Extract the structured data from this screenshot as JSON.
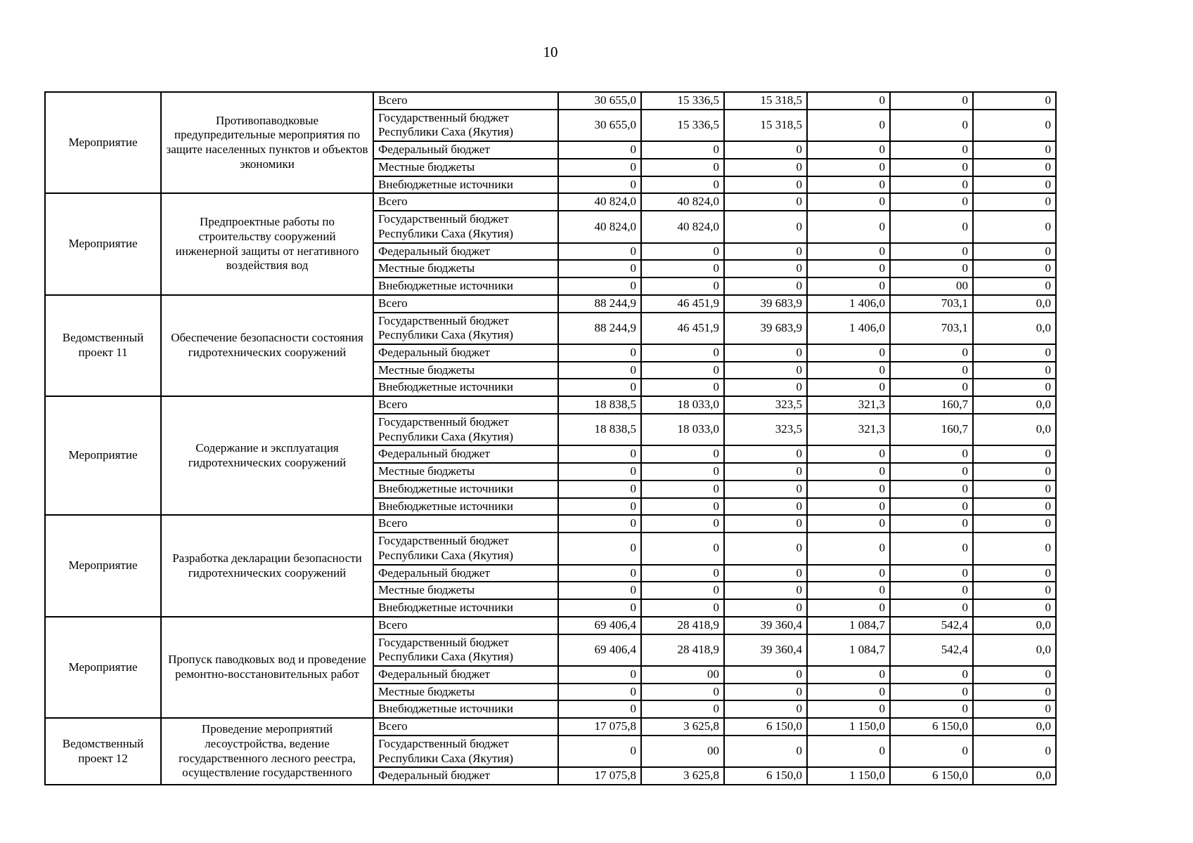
{
  "page": {
    "number": "10"
  },
  "table": {
    "groups": [
      {
        "label": "Мероприятие",
        "description": "Противопаводковые предупредительные мероприятия по защите населенных пунктов и объектов экономики",
        "rows": [
          {
            "source": "Всего",
            "values": [
              "30 655,0",
              "15 336,5",
              "15 318,5",
              "0",
              "0",
              "0"
            ]
          },
          {
            "source": "Государственный бюджет Республики Саха (Якутия)",
            "values": [
              "30 655,0",
              "15 336,5",
              "15 318,5",
              "0",
              "0",
              "0"
            ]
          },
          {
            "source": "Федеральный бюджет",
            "values": [
              "0",
              "0",
              "0",
              "0",
              "0",
              "0"
            ]
          },
          {
            "source": "Местные бюджеты",
            "values": [
              "0",
              "0",
              "0",
              "0",
              "0",
              "0"
            ]
          },
          {
            "source": "Внебюджетные источники",
            "values": [
              "0",
              "0",
              "0",
              "0",
              "0",
              "0"
            ]
          }
        ]
      },
      {
        "label": "Мероприятие",
        "description": "Предпроектные работы по строительству сооружений инженерной защиты от негативного воздействия вод",
        "rows": [
          {
            "source": "Всего",
            "values": [
              "40 824,0",
              "40 824,0",
              "0",
              "0",
              "0",
              "0"
            ]
          },
          {
            "source": "Государственный бюджет Республики Саха (Якутия)",
            "values": [
              "40 824,0",
              "40 824,0",
              "0",
              "0",
              "0",
              "0"
            ]
          },
          {
            "source": "Федеральный бюджет",
            "values": [
              "0",
              "0",
              "0",
              "0",
              "0",
              "0"
            ]
          },
          {
            "source": "Местные бюджеты",
            "values": [
              "0",
              "0",
              "0",
              "0",
              "0",
              "0"
            ]
          },
          {
            "source": "Внебюджетные источники",
            "values": [
              "0",
              "0",
              "0",
              "0",
              "00",
              "0"
            ]
          }
        ]
      },
      {
        "label": "Ведомственный проект 11",
        "description": "Обеспечение безопасности состояния гидротехнических сооружений",
        "rows": [
          {
            "source": "Всего",
            "values": [
              "88 244,9",
              "46 451,9",
              "39 683,9",
              "1 406,0",
              "703,1",
              "0,0"
            ]
          },
          {
            "source": "Государственный бюджет Республики Саха (Якутия)",
            "values": [
              "88 244,9",
              "46 451,9",
              "39 683,9",
              "1 406,0",
              "703,1",
              "0,0"
            ]
          },
          {
            "source": "Федеральный бюджет",
            "values": [
              "0",
              "0",
              "0",
              "0",
              "0",
              "0"
            ]
          },
          {
            "source": "Местные бюджеты",
            "values": [
              "0",
              "0",
              "0",
              "0",
              "0",
              "0"
            ]
          },
          {
            "source": "Внебюджетные источники",
            "values": [
              "0",
              "0",
              "0",
              "0",
              "0",
              "0"
            ]
          }
        ]
      },
      {
        "label": "Мероприятие",
        "description": "Содержание и эксплуатация гидротехнических сооружений",
        "rows": [
          {
            "source": "Всего",
            "values": [
              "18 838,5",
              "18 033,0",
              "323,5",
              "321,3",
              "160,7",
              "0,0"
            ]
          },
          {
            "source": "Государственный бюджет Республики Саха (Якутия)",
            "values": [
              "18 838,5",
              "18 033,0",
              "323,5",
              "321,3",
              "160,7",
              "0,0"
            ]
          },
          {
            "source": "Федеральный бюджет",
            "values": [
              "0",
              "0",
              "0",
              "0",
              "0",
              "0"
            ]
          },
          {
            "source": "Местные бюджеты",
            "values": [
              "0",
              "0",
              "0",
              "0",
              "0",
              "0"
            ]
          },
          {
            "source": "Внебюджетные источники",
            "values": [
              "0",
              "0",
              "0",
              "0",
              "0",
              "0"
            ]
          },
          {
            "source": "Внебюджетные источники",
            "values": [
              "0",
              "0",
              "0",
              "0",
              "0",
              "0"
            ]
          }
        ]
      },
      {
        "label": "Мероприятие",
        "description": "Разработка декларации безопасности гидротехнических сооружений",
        "rows": [
          {
            "source": "Всего",
            "values": [
              "0",
              "0",
              "0",
              "0",
              "0",
              "0"
            ]
          },
          {
            "source": "Государственный бюджет Республики Саха (Якутия)",
            "values": [
              "0",
              "0",
              "0",
              "0",
              "0",
              "0"
            ]
          },
          {
            "source": "Федеральный бюджет",
            "values": [
              "0",
              "0",
              "0",
              "0",
              "0",
              "0"
            ]
          },
          {
            "source": "Местные бюджеты",
            "values": [
              "0",
              "0",
              "0",
              "0",
              "0",
              "0"
            ]
          },
          {
            "source": "Внебюджетные источники",
            "values": [
              "0",
              "0",
              "0",
              "0",
              "0",
              "0"
            ]
          }
        ]
      },
      {
        "label": "Мероприятие",
        "description": "Пропуск паводковых вод и проведение ремонтно-восстановительных работ",
        "rows": [
          {
            "source": "Всего",
            "values": [
              "69 406,4",
              "28 418,9",
              "39 360,4",
              "1 084,7",
              "542,4",
              "0,0"
            ]
          },
          {
            "source": "Государственный бюджет Республики Саха (Якутия)",
            "values": [
              "69 406,4",
              "28 418,9",
              "39 360,4",
              "1 084,7",
              "542,4",
              "0,0"
            ]
          },
          {
            "source": "Федеральный бюджет",
            "values": [
              "0",
              "00",
              "0",
              "0",
              "0",
              "0"
            ]
          },
          {
            "source": "Местные бюджеты",
            "values": [
              "0",
              "0",
              "0",
              "0",
              "0",
              "0"
            ]
          },
          {
            "source": "Внебюджетные источники",
            "values": [
              "0",
              "0",
              "0",
              "0",
              "0",
              "0"
            ]
          }
        ]
      },
      {
        "label": "Ведомственный проект 12",
        "description": "Проведение мероприятий лесоустройства, ведение государственного лесного реестра, осуществление государственного",
        "rows": [
          {
            "source": "Всего",
            "values": [
              "17 075,8",
              "3 625,8",
              "6 150,0",
              "1 150,0",
              "6 150,0",
              "0,0"
            ]
          },
          {
            "source": "Государственный бюджет Республики Саха (Якутия)",
            "values": [
              "0",
              "00",
              "0",
              "0",
              "0",
              "0"
            ]
          },
          {
            "source": "Федеральный бюджет",
            "values": [
              "17 075,8",
              "3 625,8",
              "6 150,0",
              "1 150,0",
              "6 150,0",
              "0,0"
            ]
          }
        ]
      }
    ]
  }
}
